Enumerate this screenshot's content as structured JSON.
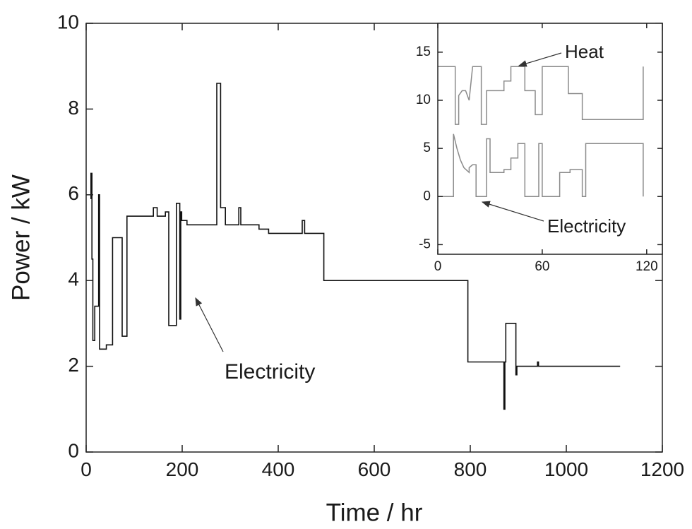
{
  "chart_data": [
    {
      "type": "line",
      "xlabel": "Time / hr",
      "ylabel": "Power / kW",
      "xlim": [
        0,
        1200
      ],
      "ylim": [
        0,
        10
      ],
      "xticks": [
        0,
        200,
        400,
        600,
        800,
        1000,
        1200
      ],
      "yticks": [
        0,
        2,
        4,
        6,
        8,
        10
      ],
      "annotations": [
        "Electricity"
      ],
      "series": [
        {
          "name": "Electricity",
          "color": "#111111",
          "x": [
            10,
            10,
            12,
            12,
            14,
            14,
            18,
            18,
            26,
            26,
            28,
            28,
            30,
            30,
            42,
            42,
            55,
            55,
            75,
            75,
            85,
            85,
            140,
            140,
            148,
            148,
            165,
            165,
            172,
            172,
            188,
            188,
            195,
            195,
            197,
            197,
            199,
            199,
            210,
            210,
            272,
            272,
            280,
            280,
            290,
            290,
            318,
            318,
            322,
            322,
            360,
            360,
            380,
            380,
            450,
            450,
            455,
            455,
            495,
            495,
            795,
            795,
            870,
            870,
            872,
            872,
            874,
            874,
            876,
            876,
            895,
            895,
            897,
            897,
            940,
            940,
            942,
            942,
            1112
          ],
          "values": [
            5.9,
            6.5,
            6.5,
            4.5,
            4.5,
            2.6,
            2.6,
            3.4,
            3.4,
            6.0,
            6.0,
            2.4,
            2.4,
            2.4,
            2.4,
            2.5,
            2.5,
            5.0,
            5.0,
            2.7,
            2.7,
            5.5,
            5.5,
            5.7,
            5.7,
            5.5,
            5.5,
            5.6,
            5.6,
            2.95,
            2.95,
            5.8,
            5.8,
            3.1,
            3.1,
            5.6,
            5.6,
            5.4,
            5.4,
            5.3,
            5.3,
            8.6,
            8.6,
            5.7,
            5.7,
            5.3,
            5.3,
            5.7,
            5.7,
            5.3,
            5.3,
            5.2,
            5.2,
            5.1,
            5.1,
            5.4,
            5.4,
            5.1,
            5.1,
            4.0,
            4.0,
            2.1,
            2.1,
            1.0,
            1.0,
            2.1,
            2.1,
            3.0,
            3.0,
            3.0,
            3.0,
            1.8,
            1.8,
            2.0,
            2.0,
            2.1,
            2.1,
            2.0,
            2.0
          ]
        }
      ]
    },
    {
      "type": "line",
      "xlim": [
        0,
        129
      ],
      "ylim": [
        -6,
        18
      ],
      "xticks": [
        0,
        60,
        120
      ],
      "yticks": [
        -5,
        0,
        5,
        10,
        15
      ],
      "annotations": [
        "Heat",
        "Electricity"
      ],
      "series": [
        {
          "name": "Heat",
          "color": "#8a8a8a",
          "x": [
            0,
            10,
            10,
            12,
            12,
            14,
            16,
            18,
            18,
            20,
            20,
            25,
            25,
            28,
            28,
            38,
            38,
            42,
            42,
            50,
            50,
            56,
            56,
            60,
            60,
            75,
            75,
            83,
            83,
            118,
            118
          ],
          "values": [
            13.5,
            13.5,
            7.5,
            7.5,
            10.5,
            11.0,
            11.0,
            10.0,
            10.0,
            13.5,
            13.5,
            13.5,
            7.5,
            7.5,
            11.0,
            11.0,
            12.0,
            12.0,
            13.5,
            13.5,
            11.0,
            11.0,
            8.5,
            8.5,
            13.5,
            13.5,
            10.7,
            10.7,
            8.0,
            8.0,
            13.5
          ]
        },
        {
          "name": "Electricity",
          "color": "#8a8a8a",
          "x": [
            0,
            9,
            9,
            11,
            13,
            15,
            18,
            18,
            20,
            22,
            22,
            28,
            28,
            30,
            30,
            38,
            38,
            42,
            42,
            46,
            46,
            50,
            50,
            58,
            58,
            60,
            60,
            70,
            70,
            76,
            76,
            83,
            83,
            85,
            85,
            118,
            118
          ],
          "values": [
            0,
            0,
            6.5,
            5.0,
            3.8,
            3.0,
            2.5,
            3.0,
            3.3,
            3.3,
            0,
            0,
            6.0,
            6.0,
            2.5,
            2.5,
            2.8,
            2.8,
            4.0,
            4.0,
            5.5,
            5.5,
            0,
            0,
            5.5,
            5.5,
            0,
            0,
            2.5,
            2.5,
            2.8,
            2.8,
            0,
            0,
            5.5,
            5.5,
            0
          ]
        }
      ]
    }
  ]
}
